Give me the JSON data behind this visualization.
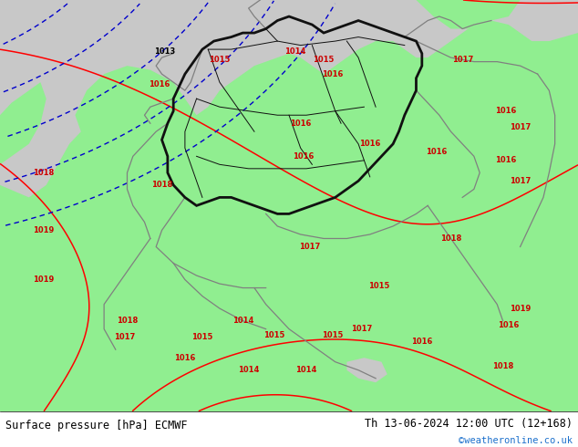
{
  "title_left": "Surface pressure [hPa] ECMWF",
  "title_right": "Th 13-06-2024 12:00 UTC (12+168)",
  "credit": "©weatheronline.co.uk",
  "bg_color": "#c8c8c8",
  "land_color": "#90ee90",
  "border_color": "#111111",
  "neighbor_border_color": "#808080",
  "contour_color_red": "#ff0000",
  "contour_color_black": "#000000",
  "contour_color_blue": "#0000cc",
  "footer_bg": "#ffffff",
  "figsize": [
    6.34,
    4.9
  ],
  "dpi": 100
}
